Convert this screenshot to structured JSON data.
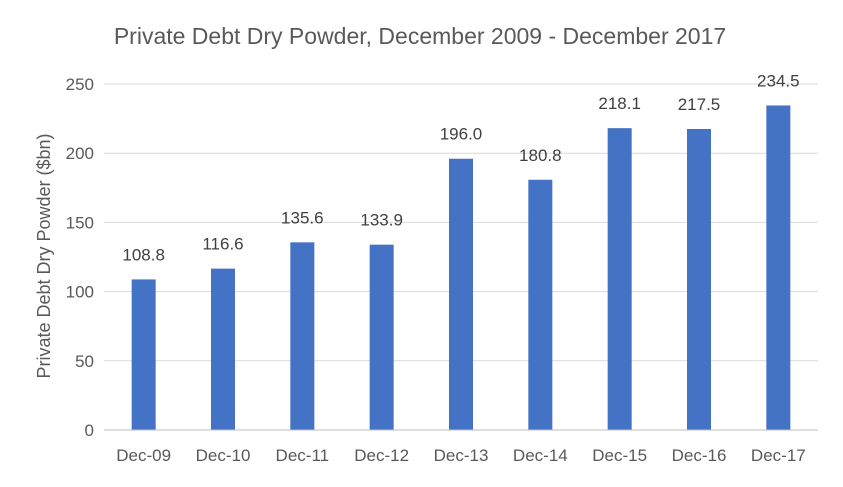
{
  "chart_data": {
    "type": "bar",
    "title": "Private Debt Dry Powder, December 2009 - December 2017",
    "xlabel": "",
    "ylabel": "Private Debt Dry Powder ($bn)",
    "categories": [
      "Dec-09",
      "Dec-10",
      "Dec-11",
      "Dec-12",
      "Dec-13",
      "Dec-14",
      "Dec-15",
      "Dec-16",
      "Dec-17"
    ],
    "values": [
      108.8,
      116.6,
      135.6,
      133.9,
      196.0,
      180.8,
      218.1,
      217.5,
      234.5
    ],
    "value_labels": [
      "108.8",
      "116.6",
      "135.6",
      "133.9",
      "196.0",
      "180.8",
      "218.1",
      "217.5",
      "234.5"
    ],
    "ylim": [
      0,
      250
    ],
    "yticks": [
      "0",
      "50",
      "100",
      "150",
      "200",
      "250"
    ],
    "grid": true,
    "legend": "none",
    "bar_color": "#4472C4"
  }
}
